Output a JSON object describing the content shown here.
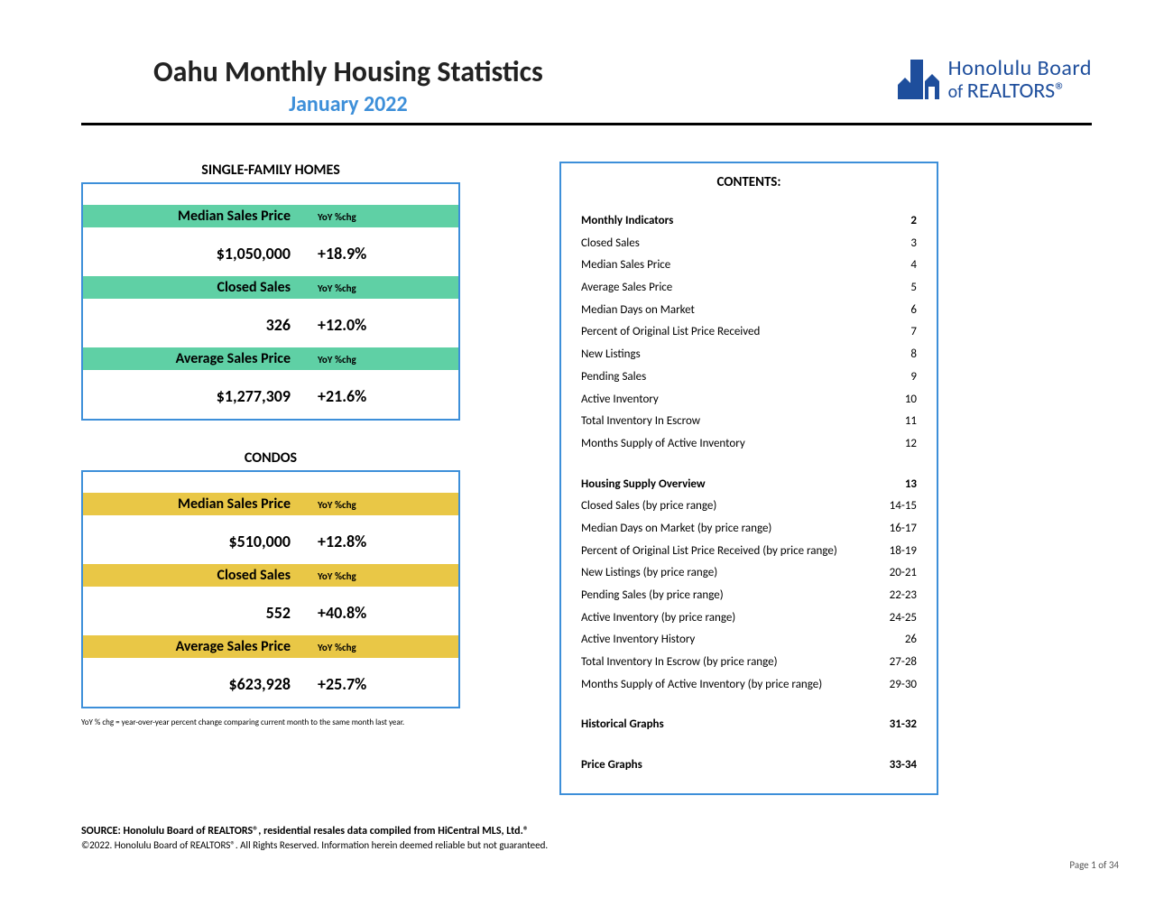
{
  "colors": {
    "blue_primary": "#1e4e9c",
    "blue_accent": "#3d8fd9",
    "sfh_border": "#3d8fd9",
    "sfh_band": "#5fd0a5",
    "condo_border": "#3d8fd9",
    "condo_band": "#e9c746",
    "contents_border": "#3d8fd9"
  },
  "header": {
    "title": "Oahu Monthly Housing Statistics",
    "subtitle": "January 2022",
    "logo_top": "Honolulu Board",
    "logo_of": "of ",
    "logo_bot": "REALTORS®"
  },
  "sfh": {
    "section_title": "SINGLE-FAMILY HOMES",
    "metrics": [
      {
        "label": "Median Sales Price",
        "yoy_label": "YoY %chg",
        "value": "$1,050,000",
        "chg": "+18.9%"
      },
      {
        "label": "Closed Sales",
        "yoy_label": "YoY %chg",
        "value": "326",
        "chg": "+12.0%"
      },
      {
        "label": "Average Sales Price",
        "yoy_label": "YoY %chg",
        "value": "$1,277,309",
        "chg": "+21.6%"
      }
    ]
  },
  "condos": {
    "section_title": "CONDOS",
    "metrics": [
      {
        "label": "Median Sales Price",
        "yoy_label": "YoY %chg",
        "value": "$510,000",
        "chg": "+12.8%"
      },
      {
        "label": "Closed Sales",
        "yoy_label": "YoY %chg",
        "value": "552",
        "chg": "+40.8%"
      },
      {
        "label": "Average Sales Price",
        "yoy_label": "YoY %chg",
        "value": "$623,928",
        "chg": "+25.7%"
      }
    ]
  },
  "footnote_yoy": "YoY % chg = year-over-year percent change comparing current month to the same month last year.",
  "contents": {
    "title": "CONTENTS:",
    "items": [
      {
        "label": "Monthly Indicators",
        "page": "2",
        "bold": true
      },
      {
        "label": "Closed Sales",
        "page": "3"
      },
      {
        "label": "Median Sales Price",
        "page": "4"
      },
      {
        "label": "Average Sales Price",
        "page": "5"
      },
      {
        "label": "Median Days on Market",
        "page": "6"
      },
      {
        "label": "Percent of Original List Price Received",
        "page": "7"
      },
      {
        "label": "New Listings",
        "page": "8"
      },
      {
        "label": "Pending Sales",
        "page": "9"
      },
      {
        "label": "Active Inventory",
        "page": "10"
      },
      {
        "label": "Total Inventory In Escrow",
        "page": "11"
      },
      {
        "label": "Months Supply of Active Inventory",
        "page": "12"
      },
      {
        "gap": true
      },
      {
        "label": "Housing Supply Overview",
        "page": "13",
        "bold": true
      },
      {
        "label": "Closed Sales (by price range)",
        "page": "14-15"
      },
      {
        "label": "Median Days on Market (by price range)",
        "page": "16-17"
      },
      {
        "label": "Percent of Original List Price Received (by price range)",
        "page": "18-19"
      },
      {
        "label": "New Listings (by price range)",
        "page": "20-21"
      },
      {
        "label": "Pending Sales (by price range)",
        "page": "22-23"
      },
      {
        "label": "Active Inventory (by price range)",
        "page": "24-25"
      },
      {
        "label": "Active Inventory History",
        "page": "26"
      },
      {
        "label": "Total Inventory In Escrow (by price range)",
        "page": "27-28"
      },
      {
        "label": "Months Supply of Active Inventory (by price range)",
        "page": "29-30"
      },
      {
        "gap": true
      },
      {
        "label": "Historical Graphs",
        "page": "31-32",
        "bold": true
      },
      {
        "gap": true
      },
      {
        "label": "Price Graphs",
        "page": "33-34",
        "bold": true
      }
    ]
  },
  "source": {
    "line1": "SOURCE: Honolulu Board of REALTORS®, residential resales data compiled from HiCentral MLS, Ltd.®",
    "line2": "©2022. Honolulu Board of REALTORS®. All Rights Reserved. Information herein deemed reliable but not guaranteed."
  },
  "page_num": "Page 1 of 34"
}
